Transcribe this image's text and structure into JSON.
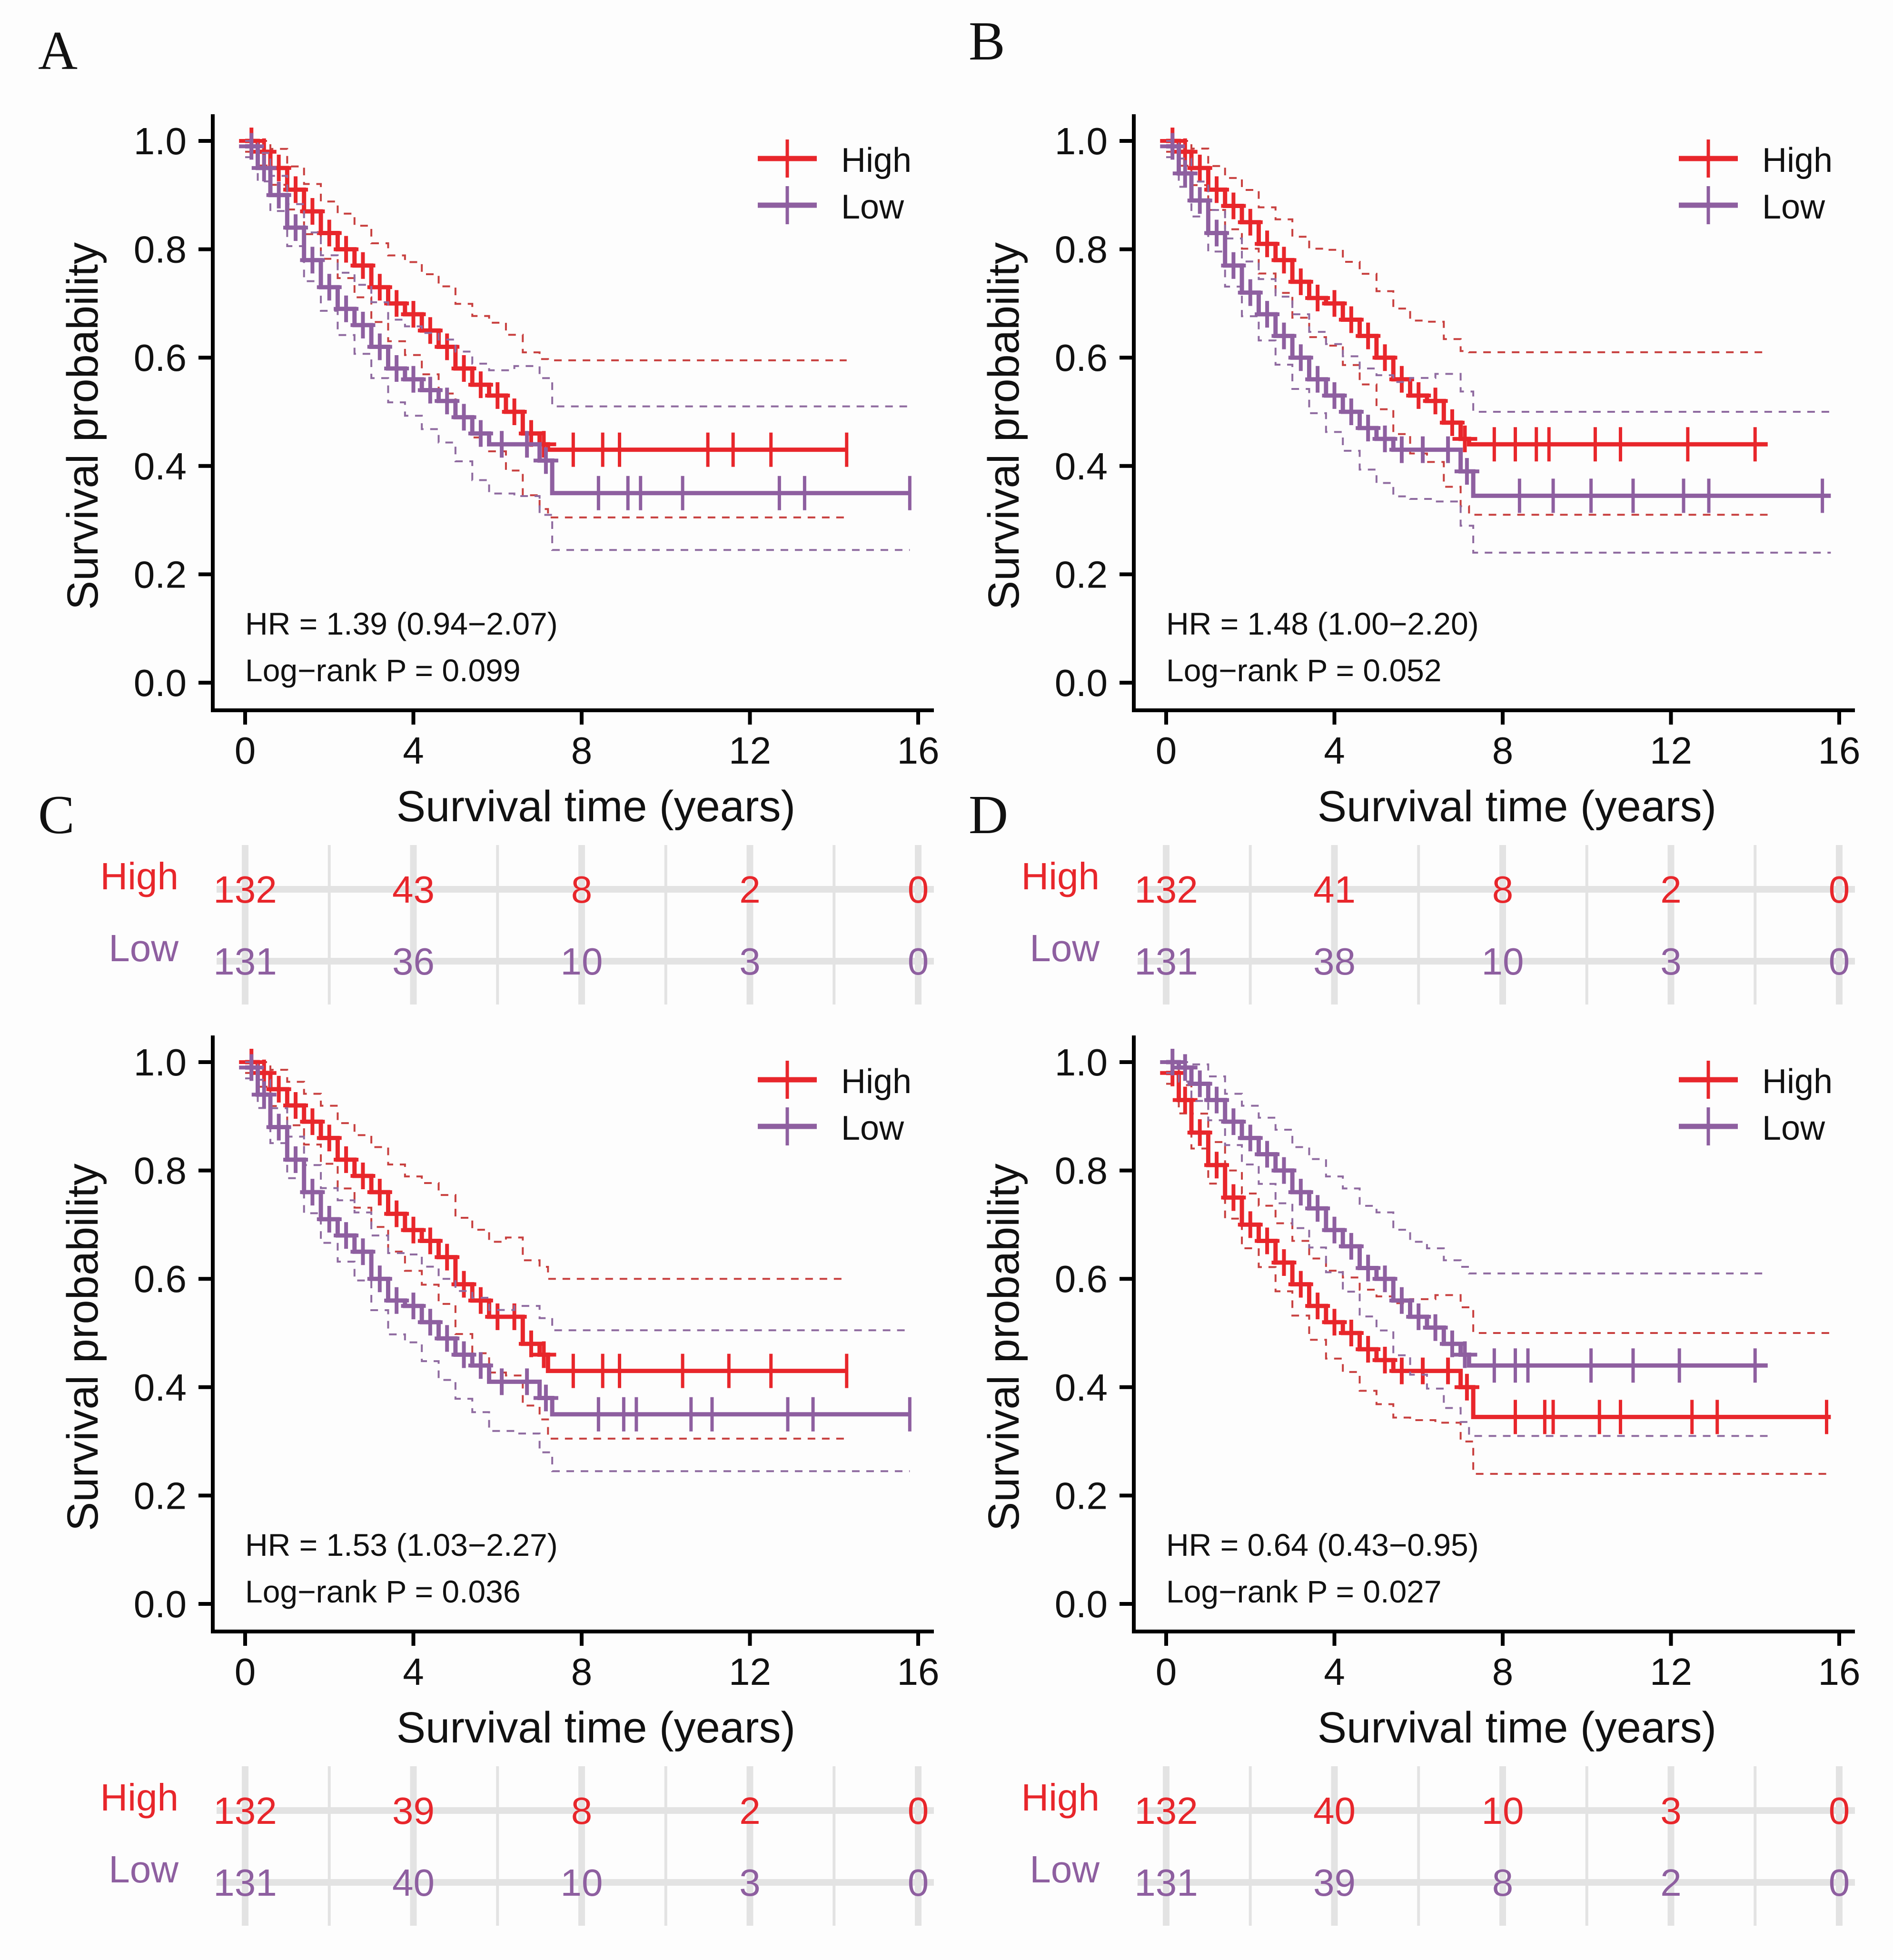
{
  "colors": {
    "high": "#e8262b",
    "low": "#8e5fa0",
    "axis": "#000000",
    "grid": "#e3e3e3",
    "ci_high": "#c8403f",
    "ci_low": "#8f6ba0"
  },
  "chart_data": [
    {
      "panel": "A",
      "type": "line",
      "subtype": "kaplan-meier",
      "xlabel": "Survival time (years)",
      "ylabel": "Survival probability",
      "xlim": [
        0,
        16
      ],
      "ylim": [
        0,
        1
      ],
      "xticks": [
        "0",
        "4",
        "8",
        "12",
        "16"
      ],
      "yticks": [
        "0.0",
        "0.2",
        "0.4",
        "0.6",
        "0.8",
        "1.0"
      ],
      "legend": {
        "position": "top-right",
        "entries": [
          "High",
          "Low"
        ]
      },
      "annotations": [
        "HR = 1.39 (0.94−2.07)",
        "Log−rank P = 0.099"
      ],
      "series": [
        {
          "name": "High",
          "x": [
            0,
            0.3,
            0.6,
            1.0,
            1.4,
            1.8,
            2.2,
            2.6,
            3.0,
            3.4,
            3.8,
            4.2,
            4.6,
            5.0,
            5.4,
            5.8,
            6.2,
            6.6,
            7.0,
            7.2,
            14.3
          ],
          "y": [
            1.0,
            0.98,
            0.95,
            0.91,
            0.87,
            0.83,
            0.8,
            0.77,
            0.73,
            0.7,
            0.68,
            0.65,
            0.62,
            0.58,
            0.55,
            0.53,
            0.5,
            0.46,
            0.44,
            0.43,
            0.43
          ],
          "ci_upper_plateau": 0.595,
          "ci_lower_plateau": 0.305,
          "censor_x": [
            7.8,
            8.5,
            8.9,
            11.0,
            11.6,
            12.5,
            14.3
          ]
        },
        {
          "name": "Low",
          "x": [
            0,
            0.3,
            0.6,
            1.0,
            1.4,
            1.8,
            2.2,
            2.6,
            3.0,
            3.4,
            3.8,
            4.2,
            4.6,
            5.0,
            5.4,
            5.8,
            6.4,
            7.0,
            7.3,
            15.8
          ],
          "y": [
            0.99,
            0.95,
            0.9,
            0.84,
            0.78,
            0.73,
            0.69,
            0.66,
            0.62,
            0.58,
            0.56,
            0.54,
            0.52,
            0.49,
            0.46,
            0.44,
            0.44,
            0.41,
            0.35,
            0.35
          ],
          "ci_upper_plateau": 0.51,
          "ci_lower_plateau": 0.245,
          "censor_x": [
            8.4,
            9.1,
            9.4,
            10.4,
            12.7,
            13.3,
            15.8
          ]
        }
      ],
      "risk_table": {
        "times": [
          "0",
          "4",
          "8",
          "12",
          "16"
        ],
        "High": [
          132,
          43,
          8,
          2,
          0
        ],
        "Low": [
          131,
          36,
          10,
          3,
          0
        ]
      }
    },
    {
      "panel": "B",
      "type": "line",
      "subtype": "kaplan-meier",
      "xlabel": "Survival time (years)",
      "ylabel": "Survival probability",
      "xlim": [
        0,
        16
      ],
      "ylim": [
        0,
        1
      ],
      "xticks": [
        "0",
        "4",
        "8",
        "12",
        "16"
      ],
      "yticks": [
        "0.0",
        "0.2",
        "0.4",
        "0.6",
        "0.8",
        "1.0"
      ],
      "legend": {
        "position": "top-right",
        "entries": [
          "High",
          "Low"
        ]
      },
      "annotations": [
        "HR = 1.48 (1.00−2.20)",
        "Log−rank P = 0.052"
      ],
      "series": [
        {
          "name": "High",
          "x": [
            0,
            0.3,
            0.6,
            1.0,
            1.4,
            1.8,
            2.2,
            2.6,
            3.0,
            3.4,
            3.8,
            4.2,
            4.6,
            5.0,
            5.4,
            5.8,
            6.2,
            6.6,
            7.0,
            7.2,
            14.3
          ],
          "y": [
            1.0,
            0.98,
            0.95,
            0.91,
            0.88,
            0.85,
            0.81,
            0.78,
            0.74,
            0.71,
            0.7,
            0.67,
            0.64,
            0.6,
            0.56,
            0.53,
            0.52,
            0.48,
            0.45,
            0.44,
            0.44
          ],
          "ci_upper_plateau": 0.61,
          "ci_lower_plateau": 0.31,
          "censor_x": [
            7.8,
            8.3,
            8.8,
            9.1,
            10.2,
            10.8,
            12.4,
            14.0
          ]
        },
        {
          "name": "Low",
          "x": [
            0,
            0.3,
            0.6,
            1.0,
            1.4,
            1.8,
            2.2,
            2.6,
            3.0,
            3.4,
            3.8,
            4.2,
            4.6,
            5.0,
            5.4,
            5.8,
            6.4,
            7.0,
            7.3,
            15.8
          ],
          "y": [
            0.99,
            0.94,
            0.89,
            0.83,
            0.77,
            0.72,
            0.68,
            0.64,
            0.6,
            0.56,
            0.53,
            0.5,
            0.47,
            0.45,
            0.43,
            0.43,
            0.43,
            0.39,
            0.345,
            0.345
          ],
          "ci_upper_plateau": 0.5,
          "ci_lower_plateau": 0.24,
          "censor_x": [
            8.4,
            9.2,
            10.1,
            11.1,
            12.3,
            12.9,
            15.6
          ]
        }
      ],
      "risk_table": {
        "times": [
          "0",
          "4",
          "8",
          "12",
          "16"
        ],
        "High": [
          132,
          41,
          8,
          2,
          0
        ],
        "Low": [
          131,
          38,
          10,
          3,
          0
        ]
      }
    },
    {
      "panel": "C",
      "type": "line",
      "subtype": "kaplan-meier",
      "xlabel": "Survival time (years)",
      "ylabel": "Survival probability",
      "xlim": [
        0,
        16
      ],
      "ylim": [
        0,
        1
      ],
      "xticks": [
        "0",
        "4",
        "8",
        "12",
        "16"
      ],
      "yticks": [
        "0.0",
        "0.2",
        "0.4",
        "0.6",
        "0.8",
        "1.0"
      ],
      "legend": {
        "position": "top-right",
        "entries": [
          "High",
          "Low"
        ]
      },
      "annotations": [
        "HR = 1.53 (1.03−2.27)",
        "Log−rank P = 0.036"
      ],
      "series": [
        {
          "name": "High",
          "x": [
            0,
            0.3,
            0.6,
            1.0,
            1.4,
            1.8,
            2.2,
            2.6,
            3.0,
            3.4,
            3.8,
            4.2,
            4.6,
            5.0,
            5.4,
            5.8,
            6.2,
            6.6,
            7.0,
            7.2,
            14.3
          ],
          "y": [
            1.0,
            0.98,
            0.95,
            0.92,
            0.89,
            0.86,
            0.82,
            0.79,
            0.76,
            0.72,
            0.69,
            0.67,
            0.64,
            0.59,
            0.56,
            0.53,
            0.53,
            0.48,
            0.46,
            0.43,
            0.43
          ],
          "ci_upper_plateau": 0.6,
          "ci_lower_plateau": 0.305,
          "censor_x": [
            7.8,
            8.5,
            8.9,
            10.4,
            11.5,
            12.5,
            14.3
          ]
        },
        {
          "name": "Low",
          "x": [
            0,
            0.3,
            0.6,
            1.0,
            1.4,
            1.8,
            2.2,
            2.6,
            3.0,
            3.4,
            3.8,
            4.2,
            4.6,
            5.0,
            5.4,
            5.8,
            6.4,
            7.0,
            7.3,
            15.8
          ],
          "y": [
            0.99,
            0.94,
            0.88,
            0.82,
            0.76,
            0.71,
            0.68,
            0.65,
            0.6,
            0.56,
            0.55,
            0.52,
            0.49,
            0.46,
            0.44,
            0.41,
            0.41,
            0.38,
            0.35,
            0.35
          ],
          "ci_upper_plateau": 0.505,
          "ci_lower_plateau": 0.245,
          "censor_x": [
            8.4,
            9.0,
            9.3,
            10.6,
            11.1,
            12.9,
            13.5,
            15.8
          ]
        }
      ],
      "risk_table": {
        "times": [
          "0",
          "4",
          "8",
          "12",
          "16"
        ],
        "High": [
          132,
          39,
          8,
          2,
          0
        ],
        "Low": [
          131,
          40,
          10,
          3,
          0
        ]
      }
    },
    {
      "panel": "D",
      "type": "line",
      "subtype": "kaplan-meier",
      "xlabel": "Survival time (years)",
      "ylabel": "Survival probability",
      "xlim": [
        0,
        16
      ],
      "ylim": [
        0,
        1
      ],
      "xticks": [
        "0",
        "4",
        "8",
        "12",
        "16"
      ],
      "yticks": [
        "0.0",
        "0.2",
        "0.4",
        "0.6",
        "0.8",
        "1.0"
      ],
      "legend": {
        "position": "top-right",
        "entries": [
          "High",
          "Low"
        ]
      },
      "annotations": [
        "HR = 0.64 (0.43−0.95)",
        "Log−rank P = 0.027"
      ],
      "series": [
        {
          "name": "High",
          "x": [
            0,
            0.3,
            0.6,
            1.0,
            1.4,
            1.8,
            2.2,
            2.6,
            3.0,
            3.4,
            3.8,
            4.2,
            4.6,
            5.0,
            5.4,
            5.8,
            6.4,
            7.0,
            7.3,
            15.8
          ],
          "y": [
            0.98,
            0.93,
            0.87,
            0.81,
            0.75,
            0.7,
            0.67,
            0.63,
            0.59,
            0.55,
            0.52,
            0.5,
            0.47,
            0.45,
            0.43,
            0.43,
            0.43,
            0.4,
            0.345,
            0.345
          ],
          "ci_upper_plateau": 0.5,
          "ci_lower_plateau": 0.24,
          "censor_x": [
            8.3,
            9.0,
            9.2,
            10.3,
            10.8,
            12.5,
            13.1,
            15.7
          ]
        },
        {
          "name": "Low",
          "x": [
            0,
            0.3,
            0.6,
            1.0,
            1.4,
            1.8,
            2.2,
            2.6,
            3.0,
            3.4,
            3.8,
            4.2,
            4.6,
            5.0,
            5.4,
            5.8,
            6.2,
            6.6,
            7.0,
            7.2,
            14.3
          ],
          "y": [
            1.0,
            0.99,
            0.96,
            0.93,
            0.89,
            0.86,
            0.83,
            0.8,
            0.76,
            0.73,
            0.69,
            0.66,
            0.62,
            0.6,
            0.56,
            0.53,
            0.51,
            0.48,
            0.46,
            0.44,
            0.44
          ],
          "ci_upper_plateau": 0.61,
          "ci_lower_plateau": 0.31,
          "censor_x": [
            7.8,
            8.3,
            8.6,
            10.1,
            11.1,
            12.2,
            14.0
          ]
        }
      ],
      "risk_table": {
        "times": [
          "0",
          "4",
          "8",
          "12",
          "16"
        ],
        "High": [
          132,
          40,
          10,
          3,
          0
        ],
        "Low": [
          131,
          39,
          8,
          2,
          0
        ]
      }
    }
  ]
}
